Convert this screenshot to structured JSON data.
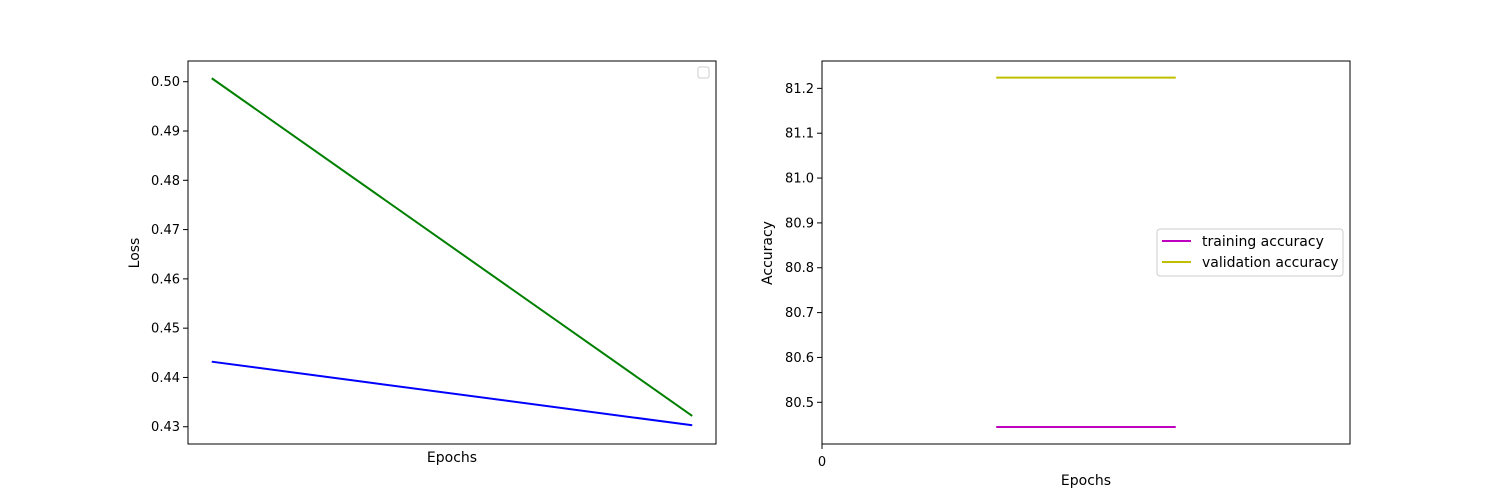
{
  "chart_data": [
    {
      "type": "line",
      "title": "",
      "xlabel": "Epochs",
      "ylabel": "Loss",
      "x": [
        0,
        1
      ],
      "xticks": [],
      "ylim": [
        0.4265,
        0.5042
      ],
      "yticks": [
        0.43,
        0.44,
        0.45,
        0.46,
        0.47,
        0.48,
        0.49,
        0.5
      ],
      "ytick_labels": [
        "0.43",
        "0.44",
        "0.45",
        "0.46",
        "0.47",
        "0.48",
        "0.49",
        "0.50"
      ],
      "grid": false,
      "legend": {
        "placement": "top-right",
        "entries": []
      },
      "series": [
        {
          "values": [
            0.4432,
            0.4303
          ],
          "color": "#0000ff"
        },
        {
          "values": [
            0.5007,
            0.4322
          ],
          "color": "#008000"
        }
      ]
    },
    {
      "type": "line",
      "title": "",
      "xlabel": "Epochs",
      "ylabel": "Accuracy",
      "x": [
        0
      ],
      "xlim": [
        0,
        1
      ],
      "xticks": [
        0
      ],
      "xtick_labels": [
        "0"
      ],
      "ylim": [
        80.407,
        81.261
      ],
      "yticks": [
        80.5,
        80.6,
        80.7,
        80.8,
        80.9,
        81.0,
        81.1,
        81.2
      ],
      "ytick_labels": [
        "80.5",
        "80.6",
        "80.7",
        "80.8",
        "80.9",
        "81.0",
        "81.1",
        "81.2"
      ],
      "grid": false,
      "legend": {
        "placement": "center-right"
      },
      "series": [
        {
          "name": "training accuracy",
          "values": [
            80.445
          ],
          "xrange": [
            0.33,
            0.67
          ],
          "color": "#bf00bf"
        },
        {
          "name": "validation accuracy",
          "values": [
            81.224
          ],
          "xrange": [
            0.33,
            0.67
          ],
          "color": "#bfbf00"
        }
      ]
    }
  ]
}
